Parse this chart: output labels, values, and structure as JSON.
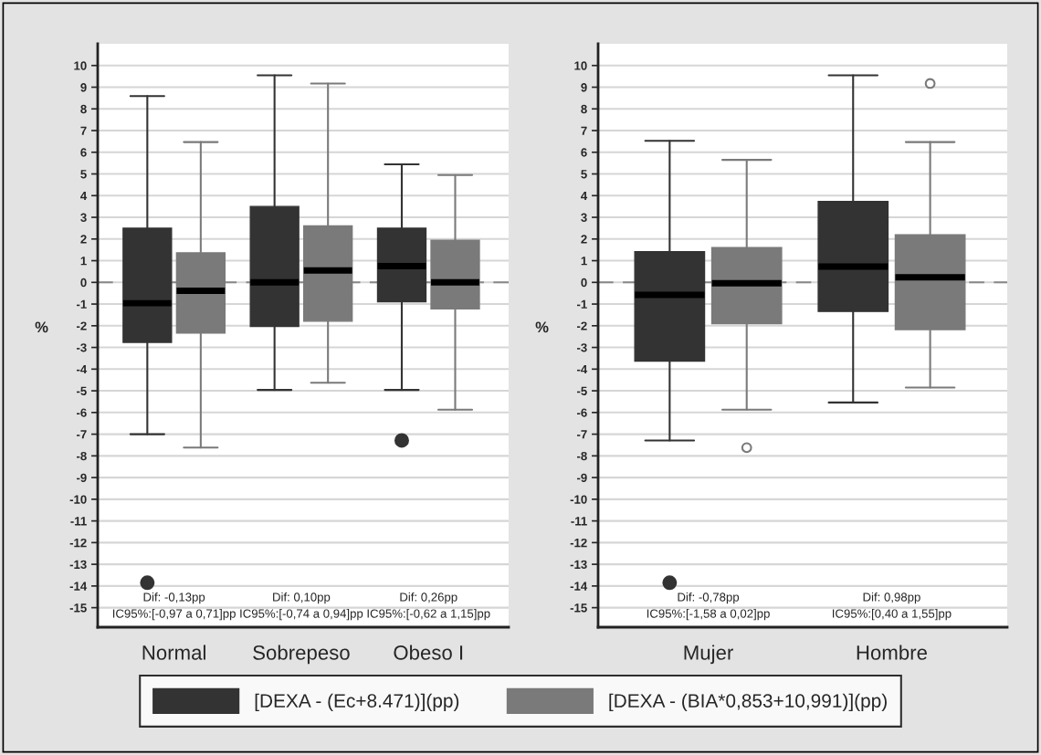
{
  "chart_data": [
    {
      "type": "box",
      "ylabel": "%",
      "categories": [
        "Normal",
        "Sobrepeso",
        "Obeso I"
      ],
      "ylim": [
        -15.9,
        11
      ],
      "yticks": [
        -15,
        -14,
        -13,
        -12,
        -11,
        -10,
        -9,
        -8,
        -7,
        -6,
        -5,
        -4,
        -3,
        -2,
        -1,
        0,
        1,
        2,
        3,
        4,
        5,
        6,
        7,
        8,
        9,
        10
      ],
      "grid": "y",
      "legend": "bottom",
      "ref_lines": [
        {
          "axis": "y",
          "value": 0,
          "color": "#888888",
          "line_style": "dashed"
        }
      ],
      "series": [
        {
          "name": "[DEXA - (Ec+8.471)](pp)",
          "color": "#333333",
          "boxes": [
            {
              "low": -7.0,
              "q1": -2.77,
              "median": -0.96,
              "q3": 2.5,
              "high": 8.59,
              "outliers": [
                -13.85
              ]
            },
            {
              "low": -4.96,
              "q1": -2.03,
              "median": 0.0,
              "q3": 3.5,
              "high": 9.55
            },
            {
              "low": -4.96,
              "q1": -0.89,
              "median": 0.75,
              "q3": 2.5,
              "high": 5.44,
              "outliers": [
                -7.29
              ]
            }
          ]
        },
        {
          "name": "[DEXA - (BIA*0,853+10,991)](pp)",
          "color": "#7a7a7a",
          "boxes": [
            {
              "low": -7.62,
              "q1": -2.34,
              "median": -0.39,
              "q3": 1.36,
              "high": 6.47
            },
            {
              "low": -4.63,
              "q1": -1.79,
              "median": 0.55,
              "q3": 2.6,
              "high": 9.17
            },
            {
              "low": -5.87,
              "q1": -1.22,
              "median": 0.0,
              "q3": 1.94,
              "high": 4.95
            }
          ]
        }
      ],
      "annotations": [
        "Dif: -0,13pp\nIC95%:[-0,97 a 0,71]pp",
        "Dif: 0,10pp\nIC95%:[-0,74 a 0,94]pp",
        "Dif: 0,26pp\nIC95%:[-0,62 a 1,15]pp"
      ]
    },
    {
      "type": "box",
      "ylabel": "%",
      "categories": [
        "Mujer",
        "Hombre"
      ],
      "ylim": [
        -15.9,
        11
      ],
      "yticks": [
        -15,
        -14,
        -13,
        -12,
        -11,
        -10,
        -9,
        -8,
        -7,
        -6,
        -5,
        -4,
        -3,
        -2,
        -1,
        0,
        1,
        2,
        3,
        4,
        5,
        6,
        7,
        8,
        9,
        10
      ],
      "grid": "y",
      "ref_lines": [
        {
          "axis": "y",
          "value": 0,
          "color": "#888888",
          "line_style": "dashed"
        }
      ],
      "series": [
        {
          "color": "#333333",
          "boxes": [
            {
              "low": -7.29,
              "q1": -3.63,
              "median": -0.58,
              "q3": 1.41,
              "high": 6.53,
              "outliers": [
                -13.85
              ]
            },
            {
              "low": -5.54,
              "q1": -1.34,
              "median": 0.73,
              "q3": 3.73,
              "high": 9.55
            }
          ]
        },
        {
          "color": "#7a7a7a",
          "boxes": [
            {
              "low": -5.87,
              "q1": -1.9,
              "median": -0.04,
              "q3": 1.6,
              "high": 5.65,
              "outliers": [
                -7.62
              ]
            },
            {
              "low": -4.85,
              "q1": -2.18,
              "median": 0.23,
              "q3": 2.19,
              "high": 6.47,
              "outliers": [
                9.17
              ]
            }
          ]
        }
      ],
      "annotations": [
        "Dif: -0,78pp\nIC95%:[-1,58 a 0,02]pp",
        "Dif: 0,98pp\nIC95%:[0,40 a 1,55]pp"
      ]
    }
  ]
}
